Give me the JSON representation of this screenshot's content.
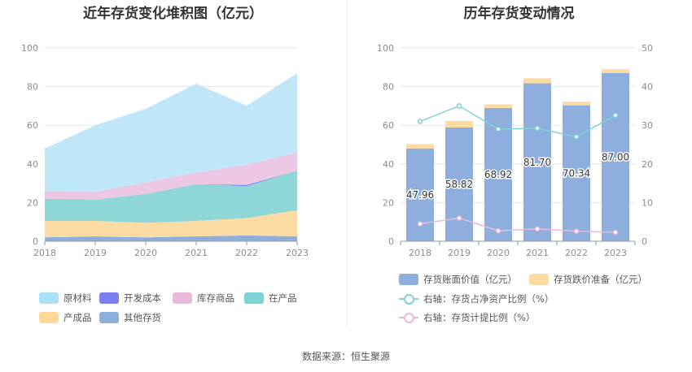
{
  "source_label": "数据来源：恒生聚源",
  "chart_data": [
    {
      "type": "area",
      "title": "近年存货变化堆积图（亿元）",
      "categories": [
        "2018",
        "2019",
        "2020",
        "2021",
        "2022",
        "2023"
      ],
      "ylim": [
        0,
        100
      ],
      "yticks": [
        "0",
        "20",
        "40",
        "60",
        "80",
        "100"
      ],
      "stacked": true,
      "grid": true,
      "legend_position": "bottom",
      "series": [
        {
          "name": "其他存货",
          "color": "#8eaedd",
          "values": [
            2.0,
            2.5,
            2.0,
            2.5,
            3.0,
            2.5
          ]
        },
        {
          "name": "产成品",
          "color": "#fddca4",
          "values": [
            8.5,
            8.0,
            7.5,
            8.0,
            9.0,
            13.5
          ]
        },
        {
          "name": "在产品",
          "color": "#8fd6d8",
          "values": [
            11.5,
            11.0,
            15.0,
            19.0,
            16.5,
            20.5
          ]
        },
        {
          "name": "开发成本",
          "color": "#7b7ff0",
          "values": [
            0,
            0,
            0,
            0,
            0.6,
            0
          ]
        },
        {
          "name": "库存商品",
          "color": "#ecc7e3",
          "values": [
            4.0,
            4.0,
            6.0,
            6.0,
            10.5,
            9.5
          ]
        },
        {
          "name": "原材料",
          "color": "#bfe7f8",
          "values": [
            22.0,
            34.5,
            38.0,
            46.0,
            30.5,
            41.0
          ]
        }
      ],
      "legend": [
        {
          "name": "原材料",
          "color": "#a9dff7"
        },
        {
          "name": "开发成本",
          "color": "#7b7ff0"
        },
        {
          "name": "库存商品",
          "color": "#e9b9dc"
        },
        {
          "name": "在产品",
          "color": "#7dd3d6"
        },
        {
          "name": "产成品",
          "color": "#fdd89a"
        },
        {
          "name": "其他存货",
          "color": "#8eaedd"
        }
      ]
    },
    {
      "type": "bar",
      "title": "历年存货变动情况",
      "categories": [
        "2018",
        "2019",
        "2020",
        "2021",
        "2022",
        "2023"
      ],
      "ylim": [
        0,
        100
      ],
      "y2lim": [
        0,
        50
      ],
      "yticks": [
        "0",
        "20",
        "40",
        "60",
        "80",
        "100"
      ],
      "y2ticks": [
        "0",
        "10",
        "20",
        "30",
        "40",
        "50"
      ],
      "stacked": true,
      "grid": true,
      "legend_position": "bottom",
      "series": [
        {
          "name": "存货账面价值（亿元）",
          "color": "#8eaedd",
          "values": [
            47.96,
            58.82,
            68.92,
            81.7,
            70.34,
            87.0
          ],
          "labels": [
            "47.96",
            "58.82",
            "68.92",
            "81.70",
            "70.34",
            "87.00"
          ]
        },
        {
          "name": "存货跌价准备（亿元）",
          "color": "#fddca4",
          "values": [
            2.3,
            3.4,
            1.9,
            2.6,
            1.9,
            2.0
          ]
        },
        {
          "name": "右轴：存货占净资产比例（%）",
          "type": "line",
          "axis": "right",
          "color": "#7dd3d6",
          "values": [
            31.0,
            35.0,
            29.0,
            29.2,
            27.0,
            32.6
          ]
        },
        {
          "name": "右轴：存货计提比例（%）",
          "type": "line",
          "axis": "right",
          "color": "#e9b9dc",
          "values": [
            4.5,
            6.0,
            2.7,
            3.2,
            2.6,
            2.3
          ]
        }
      ]
    }
  ]
}
